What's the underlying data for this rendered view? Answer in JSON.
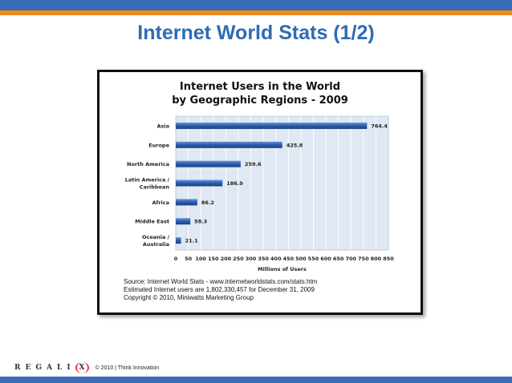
{
  "slide": {
    "title": "Internet World Stats (1/2)",
    "copyright": "© 2010 | Think Innovation",
    "logo_text": "REGALI",
    "logo_mark": "X"
  },
  "chart_data": {
    "type": "bar",
    "orientation": "horizontal",
    "title_line1": "Internet Users in the World",
    "title_line2": "by Geographic Regions - 2009",
    "xlabel": "Millions of Users",
    "categories": [
      "Asia",
      "Europe",
      "North America",
      "Latin America / Caribbean",
      "Africa",
      "Middle East",
      "Oceania / Australia"
    ],
    "category_lines": [
      [
        "Asia"
      ],
      [
        "Europe"
      ],
      [
        "North America"
      ],
      [
        "Latin America /",
        "Caribbean"
      ],
      [
        "Africa"
      ],
      [
        "Middle East"
      ],
      [
        "Oceania  /",
        "Australia"
      ]
    ],
    "values": [
      764.4,
      425.8,
      259.6,
      186.9,
      86.2,
      58.3,
      21.1
    ],
    "value_labels": [
      "764.4",
      "425.8",
      "259.6",
      "186.9",
      "86.2",
      "58.3",
      "21.1"
    ],
    "xlim": [
      0,
      850
    ],
    "xticks": [
      "0",
      "50",
      "100",
      "150",
      "200",
      "250",
      "300",
      "350",
      "400",
      "450",
      "500",
      "550",
      "600",
      "650",
      "700",
      "750",
      "800",
      "850"
    ],
    "grid": true,
    "bar_color": "#2c5fb0",
    "plot_background": "#dfe8f3",
    "source_lines": [
      "Source: Internet World Stats - www.internetworldstats.com/stats.htm",
      "Estimated Internet users are 1,802,330,457 for December 31, 2009",
      "Copyright © 2010, Miniwatts Marketing Group"
    ]
  }
}
